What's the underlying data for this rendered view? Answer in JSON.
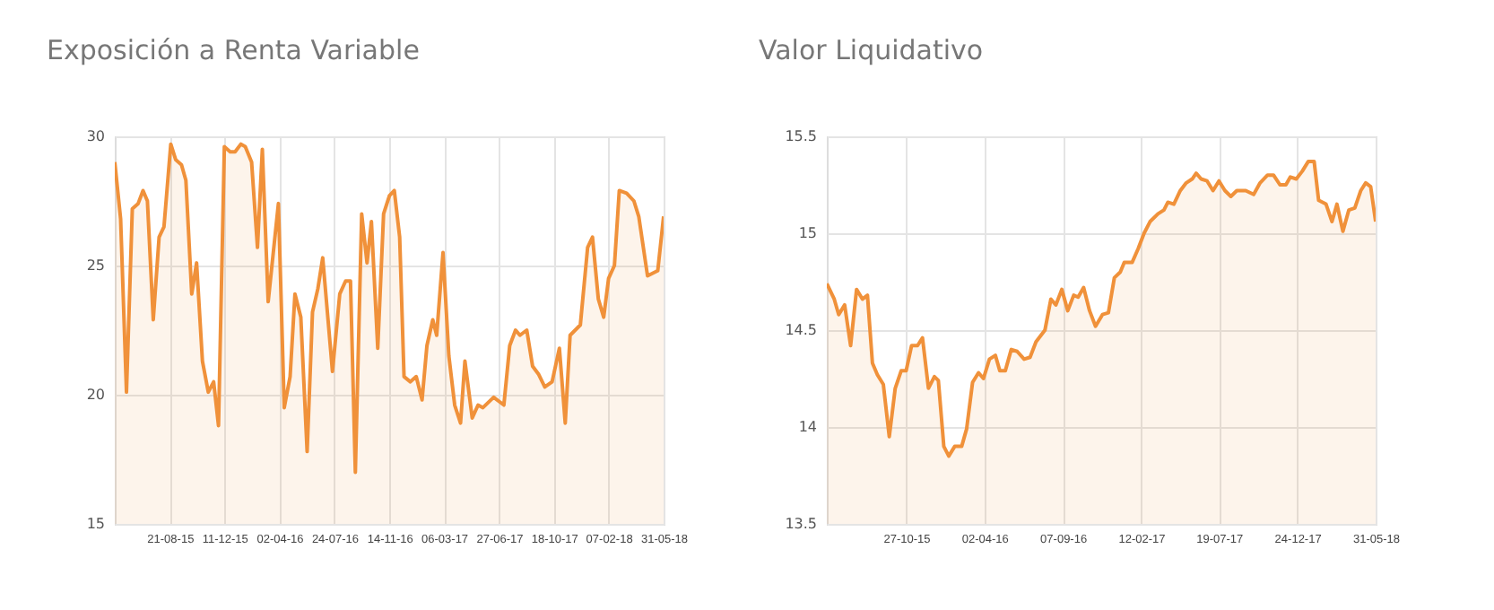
{
  "chart_data": [
    {
      "type": "area",
      "title": "Exposición a Renta Variable",
      "grid": true,
      "xlim": [
        "2015-04-30",
        "2018-05-31"
      ],
      "ylim": [
        15,
        30
      ],
      "yticks": [
        15,
        20,
        25,
        30
      ],
      "xticks": [
        {
          "value": "2015-08-21",
          "label": "21-08-15"
        },
        {
          "value": "2015-12-11",
          "label": "11-12-15"
        },
        {
          "value": "2016-04-02",
          "label": "02-04-16"
        },
        {
          "value": "2016-07-24",
          "label": "24-07-16"
        },
        {
          "value": "2016-11-14",
          "label": "14-11-16"
        },
        {
          "value": "2017-03-06",
          "label": "06-03-17"
        },
        {
          "value": "2017-06-27",
          "label": "27-06-17"
        },
        {
          "value": "2017-10-18",
          "label": "18-10-17"
        },
        {
          "value": "2018-02-07",
          "label": "07-02-18"
        },
        {
          "value": "2018-05-31",
          "label": "31-05-18"
        }
      ],
      "x": [
        "2015-04-30",
        "2015-05-12",
        "2015-05-24",
        "2015-06-05",
        "2015-06-17",
        "2015-06-27",
        "2015-07-06",
        "2015-07-18",
        "2015-07-30",
        "2015-08-09",
        "2015-08-23",
        "2015-09-02",
        "2015-09-14",
        "2015-09-23",
        "2015-10-05",
        "2015-10-15",
        "2015-10-27",
        "2015-11-08",
        "2015-11-19",
        "2015-11-29",
        "2015-12-11",
        "2015-12-23",
        "2016-01-02",
        "2016-01-14",
        "2016-01-23",
        "2016-02-05",
        "2016-02-17",
        "2016-02-27",
        "2016-03-10",
        "2016-03-31",
        "2016-04-12",
        "2016-04-24",
        "2016-05-04",
        "2016-05-16",
        "2016-05-29",
        "2016-06-09",
        "2016-06-20",
        "2016-06-30",
        "2016-07-20",
        "2016-08-04",
        "2016-08-16",
        "2016-08-26",
        "2016-09-05",
        "2016-09-18",
        "2016-09-29",
        "2016-10-08",
        "2016-10-21",
        "2016-11-02",
        "2016-11-14",
        "2016-11-24",
        "2016-12-05",
        "2016-12-14",
        "2016-12-27",
        "2017-01-08",
        "2017-01-20",
        "2017-01-30",
        "2017-02-11",
        "2017-02-19",
        "2017-03-04",
        "2017-03-16",
        "2017-03-28",
        "2017-04-09",
        "2017-04-18",
        "2017-05-03",
        "2017-05-15",
        "2017-05-25",
        "2017-06-16",
        "2017-07-07",
        "2017-07-19",
        "2017-07-31",
        "2017-08-09",
        "2017-08-23",
        "2017-09-04",
        "2017-09-16",
        "2017-09-29",
        "2017-10-14",
        "2017-10-29",
        "2017-11-10",
        "2017-11-20",
        "2017-12-11",
        "2017-12-26",
        "2018-01-05",
        "2018-01-17",
        "2018-01-28",
        "2018-02-07",
        "2018-02-19",
        "2018-03-01",
        "2018-03-16",
        "2018-03-31",
        "2018-04-10",
        "2018-04-28",
        "2018-05-19",
        "2018-05-31"
      ],
      "series": [
        {
          "color": "#f0913a",
          "values": [
            29.0,
            26.8,
            20.1,
            27.2,
            27.4,
            27.9,
            27.5,
            22.9,
            26.1,
            26.5,
            29.7,
            29.1,
            28.9,
            28.3,
            23.9,
            25.1,
            21.3,
            20.1,
            20.5,
            18.8,
            29.6,
            29.4,
            29.4,
            29.7,
            29.6,
            29.0,
            25.7,
            29.5,
            23.6,
            27.4,
            19.5,
            20.7,
            23.9,
            23.0,
            17.8,
            23.2,
            24.1,
            25.3,
            20.9,
            23.9,
            24.4,
            24.4,
            17.0,
            27.0,
            25.1,
            26.7,
            21.8,
            27.0,
            27.7,
            27.9,
            26.1,
            20.7,
            20.5,
            20.7,
            19.8,
            21.9,
            22.9,
            22.3,
            25.5,
            21.5,
            19.6,
            18.9,
            21.3,
            19.1,
            19.6,
            19.5,
            19.9,
            19.6,
            21.9,
            22.5,
            22.3,
            22.5,
            21.1,
            20.8,
            20.3,
            20.5,
            21.8,
            18.9,
            22.3,
            22.7,
            25.7,
            26.1,
            23.7,
            23.0,
            24.5,
            25.0,
            27.9,
            27.8,
            27.5,
            26.9,
            24.6,
            24.8,
            26.9
          ]
        }
      ]
    },
    {
      "type": "area",
      "title": "Valor Liquidativo",
      "grid": true,
      "xlim": [
        "2015-05-20",
        "2018-05-31"
      ],
      "ylim": [
        13.5,
        15.5
      ],
      "yticks": [
        13.5,
        14,
        14.5,
        15,
        15.5
      ],
      "xticks": [
        {
          "value": "2015-10-27",
          "label": "27-10-15"
        },
        {
          "value": "2016-04-02",
          "label": "02-04-16"
        },
        {
          "value": "2016-09-07",
          "label": "07-09-16"
        },
        {
          "value": "2017-02-12",
          "label": "12-02-17"
        },
        {
          "value": "2017-07-19",
          "label": "19-07-17"
        },
        {
          "value": "2017-12-24",
          "label": "24-12-17"
        },
        {
          "value": "2018-05-31",
          "label": "31-05-18"
        }
      ],
      "x": [
        "2015-05-20",
        "2015-06-04",
        "2015-06-13",
        "2015-06-25",
        "2015-07-07",
        "2015-07-19",
        "2015-07-31",
        "2015-08-10",
        "2015-08-20",
        "2015-08-30",
        "2015-09-11",
        "2015-09-23",
        "2015-10-05",
        "2015-10-17",
        "2015-10-27",
        "2015-11-07",
        "2015-11-19",
        "2015-11-29",
        "2015-12-11",
        "2015-12-23",
        "2015-12-31",
        "2016-01-11",
        "2016-01-21",
        "2016-02-02",
        "2016-02-16",
        "2016-02-26",
        "2016-03-09",
        "2016-03-21",
        "2016-03-31",
        "2016-04-12",
        "2016-04-24",
        "2016-05-03",
        "2016-05-14",
        "2016-05-26",
        "2016-06-07",
        "2016-06-21",
        "2016-07-03",
        "2016-07-15",
        "2016-08-02",
        "2016-08-14",
        "2016-08-24",
        "2016-09-05",
        "2016-09-17",
        "2016-09-29",
        "2016-10-08",
        "2016-10-19",
        "2016-10-31",
        "2016-11-12",
        "2016-11-26",
        "2016-12-08",
        "2016-12-20",
        "2017-01-01",
        "2017-01-09",
        "2017-01-25",
        "2017-02-06",
        "2017-02-18",
        "2017-03-02",
        "2017-03-18",
        "2017-03-30",
        "2017-04-07",
        "2017-04-19",
        "2017-05-02",
        "2017-05-14",
        "2017-05-26",
        "2017-06-03",
        "2017-06-13",
        "2017-06-25",
        "2017-07-07",
        "2017-07-19",
        "2017-07-31",
        "2017-08-12",
        "2017-08-24",
        "2017-09-11",
        "2017-09-27",
        "2017-10-10",
        "2017-10-25",
        "2017-11-06",
        "2017-11-19",
        "2017-12-01",
        "2017-12-10",
        "2017-12-22",
        "2018-01-03",
        "2018-01-15",
        "2018-01-27",
        "2018-02-05",
        "2018-02-20",
        "2018-03-04",
        "2018-03-14",
        "2018-03-26",
        "2018-04-07",
        "2018-04-19",
        "2018-05-01",
        "2018-05-11",
        "2018-05-21",
        "2018-05-31"
      ],
      "series": [
        {
          "color": "#f0913a",
          "values": [
            14.74,
            14.66,
            14.58,
            14.63,
            14.42,
            14.71,
            14.66,
            14.68,
            14.33,
            14.27,
            14.22,
            13.95,
            14.2,
            14.29,
            14.29,
            14.42,
            14.42,
            14.46,
            14.2,
            14.26,
            14.24,
            13.9,
            13.85,
            13.9,
            13.9,
            13.99,
            14.23,
            14.28,
            14.25,
            14.35,
            14.37,
            14.29,
            14.29,
            14.4,
            14.39,
            14.35,
            14.36,
            14.44,
            14.5,
            14.66,
            14.63,
            14.71,
            14.6,
            14.68,
            14.67,
            14.72,
            14.6,
            14.52,
            14.58,
            14.59,
            14.77,
            14.8,
            14.85,
            14.85,
            14.92,
            15.0,
            15.06,
            15.1,
            15.12,
            15.16,
            15.15,
            15.22,
            15.26,
            15.28,
            15.31,
            15.28,
            15.27,
            15.22,
            15.27,
            15.22,
            15.19,
            15.22,
            15.22,
            15.2,
            15.26,
            15.3,
            15.3,
            15.25,
            15.25,
            15.29,
            15.28,
            15.32,
            15.37,
            15.37,
            15.17,
            15.15,
            15.06,
            15.15,
            15.01,
            15.12,
            15.13,
            15.22,
            15.26,
            15.24,
            15.06
          ]
        }
      ]
    }
  ]
}
